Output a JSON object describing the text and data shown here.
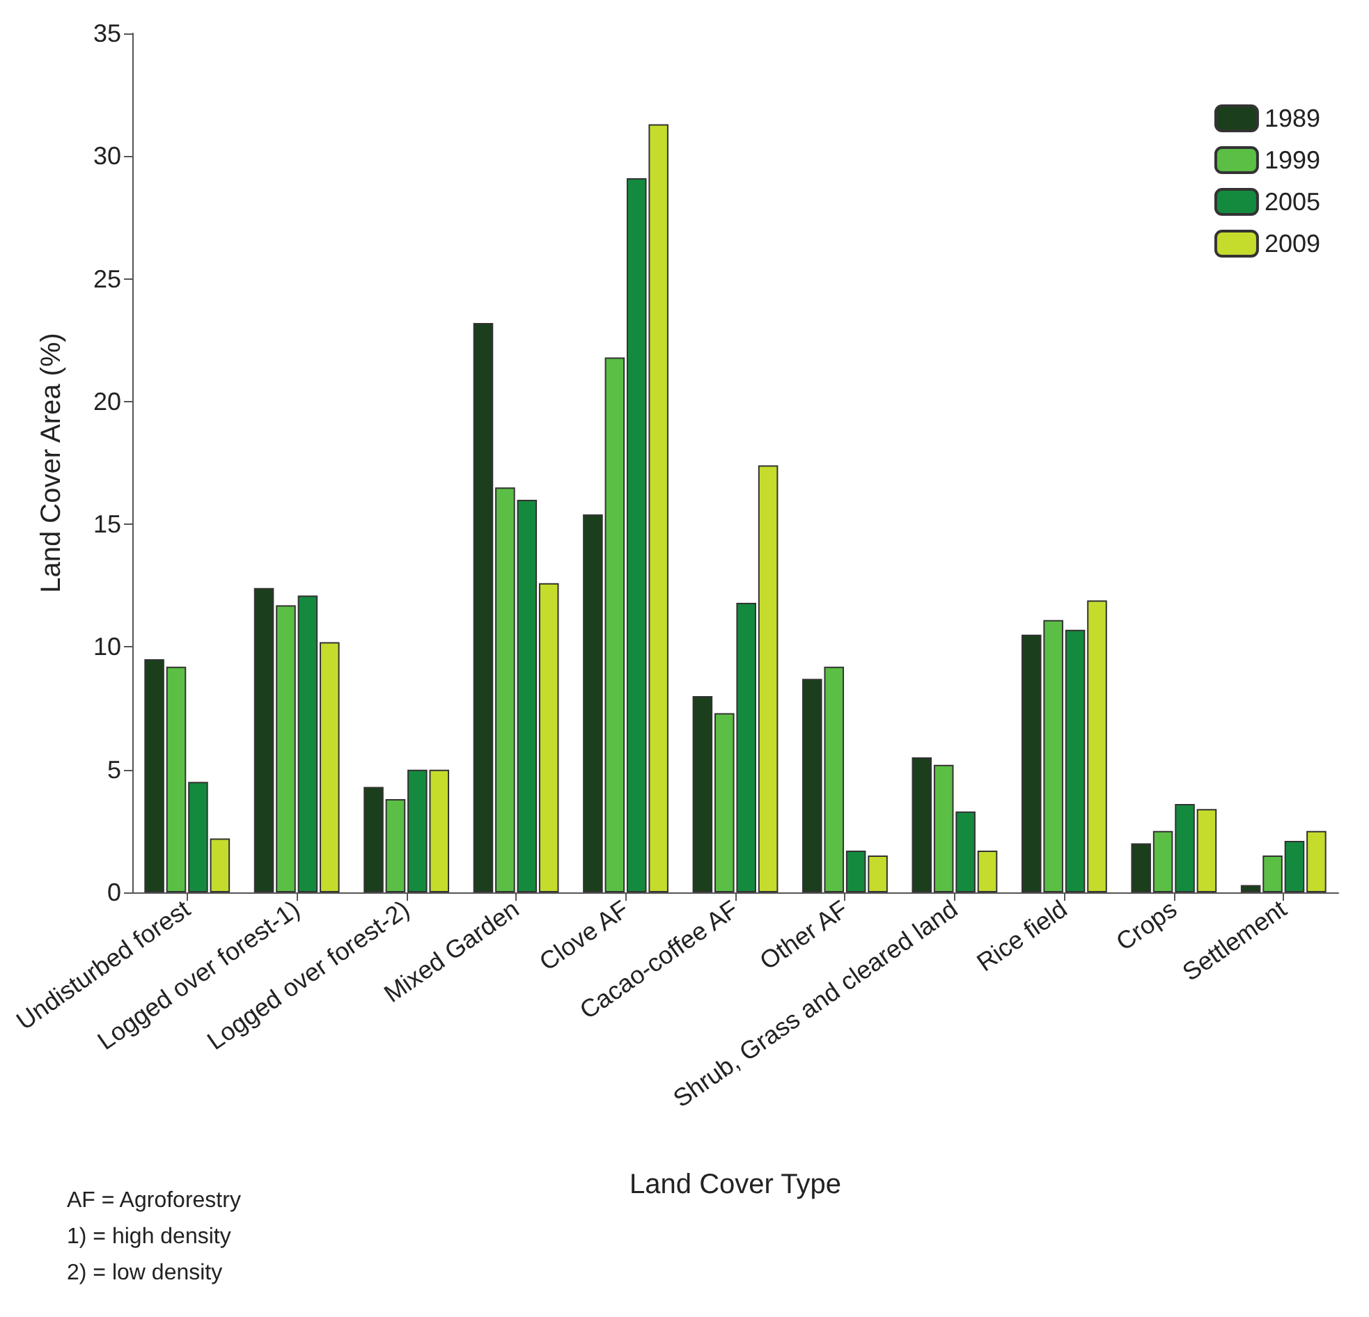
{
  "chart_data": {
    "type": "bar",
    "xlabel": "Land Cover Type",
    "ylabel": "Land Cover Area (%)",
    "categories": [
      "Undisturbed forest",
      "Logged over forest-1)",
      "Logged over forest-2)",
      "Mixed Garden",
      "Clove AF",
      "Cacao-coffee AF",
      "Other AF",
      "Shrub, Grass and cleared land",
      "Rice field",
      "Crops",
      "Settlement"
    ],
    "series": [
      {
        "name": "1989",
        "color": "#1b3f1c",
        "values": [
          9.5,
          12.4,
          4.3,
          23.2,
          15.4,
          8.0,
          8.7,
          5.5,
          10.5,
          2.0,
          0.3
        ]
      },
      {
        "name": "1999",
        "color": "#5cbf45",
        "values": [
          9.2,
          11.7,
          3.8,
          16.5,
          21.8,
          7.3,
          9.2,
          5.2,
          11.1,
          2.5,
          1.5
        ]
      },
      {
        "name": "2005",
        "color": "#148a3e",
        "values": [
          4.5,
          12.1,
          5.0,
          16.0,
          29.1,
          11.8,
          1.7,
          3.3,
          10.7,
          3.6,
          2.1
        ]
      },
      {
        "name": "2009",
        "color": "#c6dc2c",
        "values": [
          2.2,
          10.2,
          5.0,
          12.6,
          31.3,
          17.4,
          1.5,
          1.7,
          11.9,
          3.4,
          2.5
        ]
      }
    ],
    "ylim": [
      0,
      35
    ],
    "yticks": [
      0,
      5,
      10,
      15,
      20,
      25,
      30,
      35
    ],
    "grid": false,
    "legend": "top right",
    "annotations": [
      "AF = Agroforestry",
      "1)  = high density",
      "2)  = low density"
    ]
  }
}
